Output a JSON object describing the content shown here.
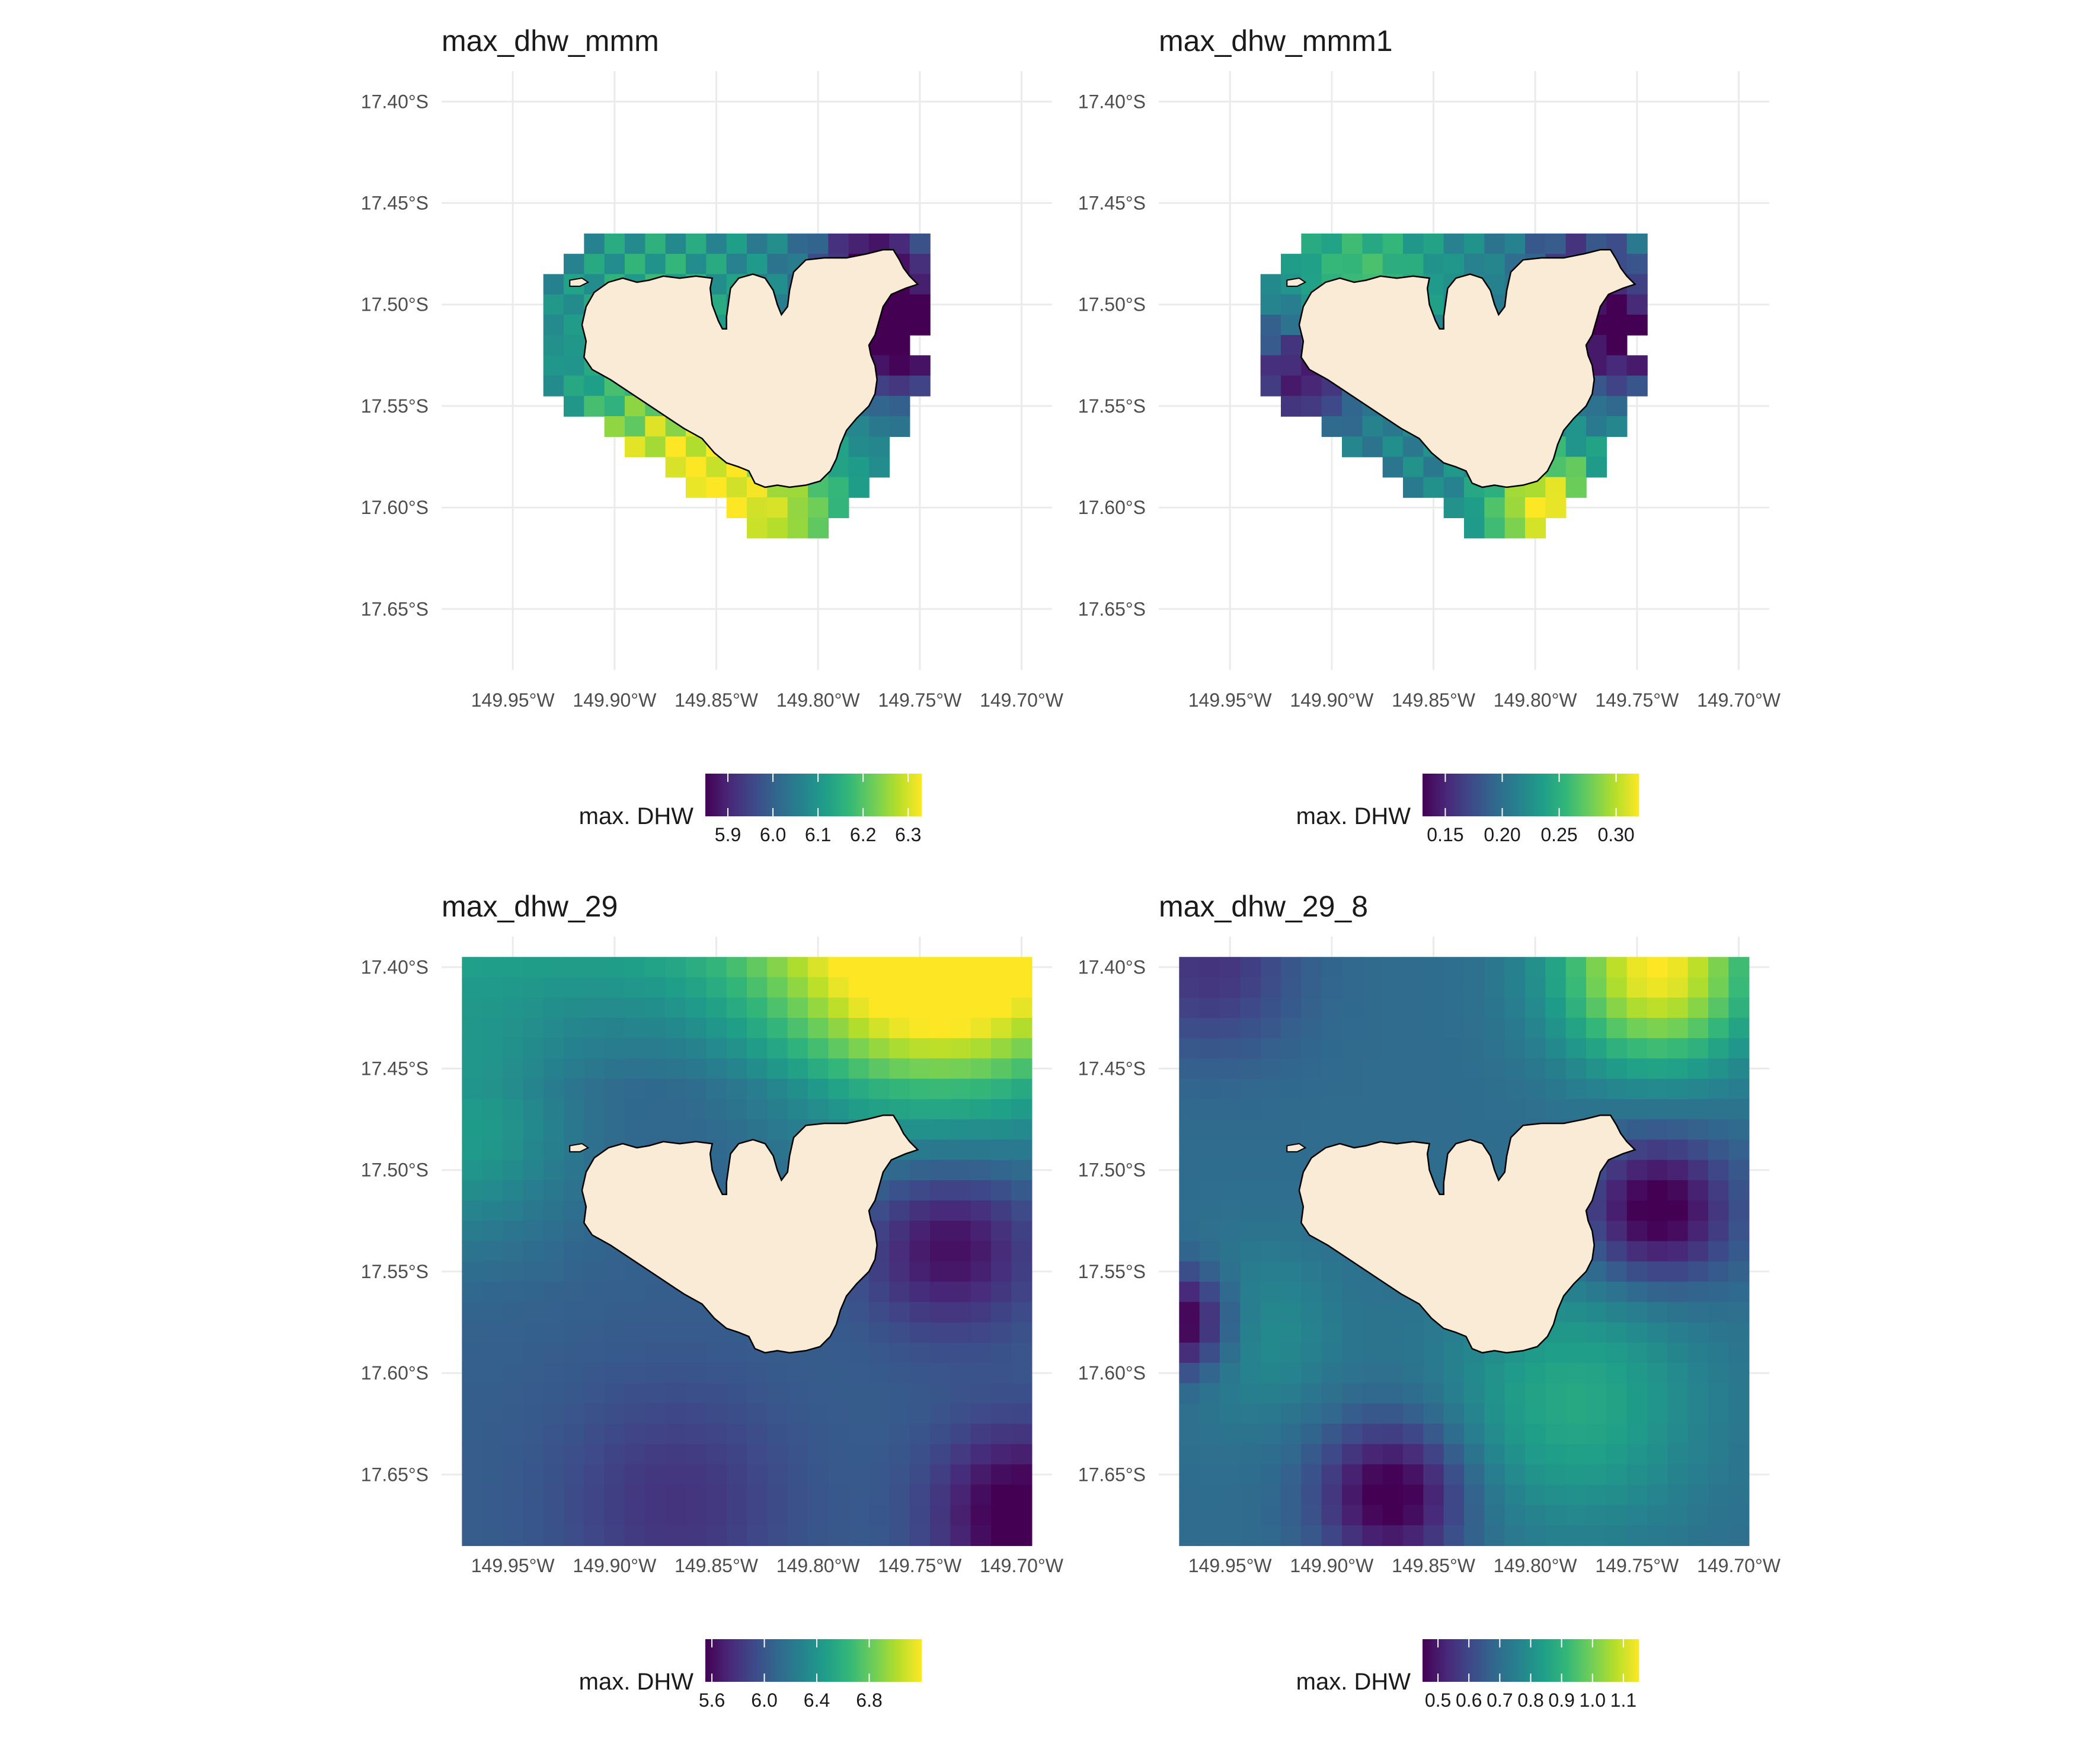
{
  "figure": {
    "colormap": [
      "#440154",
      "#482878",
      "#3e4989",
      "#31688e",
      "#26828e",
      "#1f9e89",
      "#35b779",
      "#6ece58",
      "#b5de2b",
      "#fde725"
    ],
    "colors": {
      "land": "#faebd7",
      "grid": "#ebebeb",
      "axis_text": "#4d4d4d",
      "title_text": "#1a1a1a"
    },
    "x_ticks": [
      "149.95°W",
      "149.90°W",
      "149.85°W",
      "149.80°W",
      "149.75°W",
      "149.70°W"
    ],
    "y_ticks": [
      "17.40°S",
      "17.45°S",
      "17.50°S",
      "17.55°S",
      "17.60°S",
      "17.65°S"
    ]
  },
  "chart_data": [
    {
      "type": "heatmap",
      "title": "max_dhw_mmm",
      "field": "mmm",
      "extent": "reef",
      "xlim": [
        -149.985,
        -149.685
      ],
      "ylim": [
        -17.68,
        -17.385
      ],
      "legend": {
        "title": "max. DHW",
        "min": 5.85,
        "max": 6.33,
        "ticks": [
          "5.9",
          "6.0",
          "6.1",
          "6.2",
          "6.3"
        ],
        "tick_values": [
          5.9,
          6.0,
          6.1,
          6.2,
          6.3
        ]
      }
    },
    {
      "type": "heatmap",
      "title": "max_dhw_mmm1",
      "field": "mmm1",
      "extent": "reef",
      "xlim": [
        -149.985,
        -149.685
      ],
      "ylim": [
        -17.68,
        -17.385
      ],
      "legend": {
        "title": "max. DHW",
        "min": 0.13,
        "max": 0.32,
        "ticks": [
          "0.15",
          "0.20",
          "0.25",
          "0.30"
        ],
        "tick_values": [
          0.15,
          0.2,
          0.25,
          0.3
        ]
      }
    },
    {
      "type": "heatmap",
      "title": "max_dhw_29",
      "field": "t29",
      "extent": "full",
      "xlim": [
        -149.985,
        -149.685
      ],
      "ylim": [
        -17.68,
        -17.385
      ],
      "legend": {
        "title": "max. DHW",
        "min": 5.55,
        "max": 7.2,
        "ticks": [
          "5.6",
          "6.0",
          "6.4",
          "6.8"
        ],
        "tick_values": [
          5.6,
          6.0,
          6.4,
          6.8
        ]
      }
    },
    {
      "type": "heatmap",
      "title": "max_dhw_29_8",
      "field": "t298",
      "extent": "full",
      "xlim": [
        -149.985,
        -149.685
      ],
      "ylim": [
        -17.68,
        -17.385
      ],
      "legend": {
        "title": "max. DHW",
        "min": 0.45,
        "max": 1.15,
        "ticks": [
          "0.5",
          "0.6",
          "0.7",
          "0.8",
          "0.9",
          "1.0",
          "1.1"
        ],
        "tick_values": [
          0.5,
          0.6,
          0.7,
          0.8,
          0.9,
          1.0,
          1.1
        ]
      }
    }
  ]
}
